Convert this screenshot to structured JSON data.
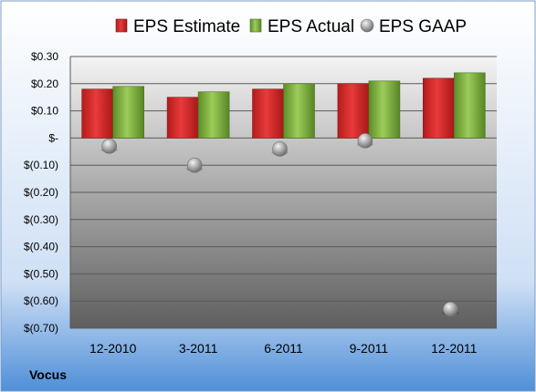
{
  "chart_data": {
    "type": "bar",
    "title": "",
    "xlabel": "",
    "ylabel": "",
    "company": "Vocus",
    "categories": [
      "12-2010",
      "3-2011",
      "6-2011",
      "9-2011",
      "12-2011"
    ],
    "ylim": [
      -0.7,
      0.3
    ],
    "yticks": [
      0.3,
      0.2,
      0.1,
      0.0,
      -0.1,
      -0.2,
      -0.3,
      -0.4,
      -0.5,
      -0.6,
      -0.7
    ],
    "ytick_labels": [
      "$0.30",
      "$0.20",
      "$0.10",
      "$-",
      "$(0.10)",
      "$(0.20)",
      "$(0.30)",
      "$(0.40)",
      "$(0.50)",
      "$(0.60)",
      "$(0.70)"
    ],
    "grid": true,
    "legend_position": "top",
    "series": [
      {
        "name": "EPS Estimate",
        "kind": "bar",
        "color": "#d42a2a",
        "values": [
          0.18,
          0.15,
          0.18,
          0.2,
          0.22
        ]
      },
      {
        "name": "EPS Actual",
        "kind": "bar",
        "color": "#7dae3c",
        "values": [
          0.19,
          0.17,
          0.2,
          0.21,
          0.24
        ]
      },
      {
        "name": "EPS GAAP",
        "kind": "marker",
        "color": "#9a9a9a",
        "values": [
          -0.03,
          -0.1,
          -0.04,
          -0.01,
          -0.63
        ]
      }
    ]
  }
}
